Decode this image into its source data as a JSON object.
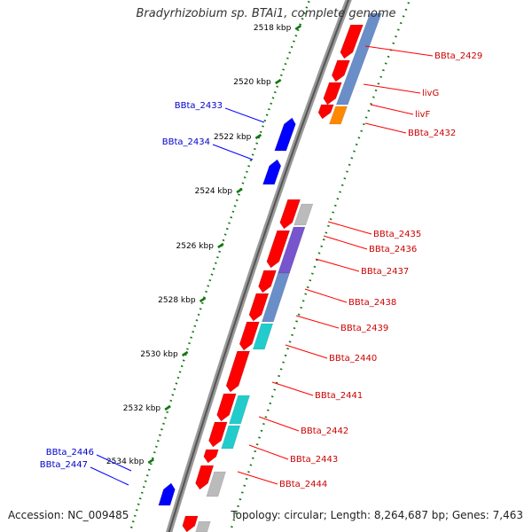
{
  "title": "Bradyrhizobium sp. BTAi1, complete genome",
  "accession": "Accession: NC_009485",
  "topology": "Topology: circular; Length: 8,264,687 bp; Genes: 7,463",
  "colors": {
    "backbone_outer": "#999999",
    "backbone_inner": "#555555",
    "forward_gene": "#ff0000",
    "reverse_gene": "#0000ff",
    "forward_label": "#cc0000",
    "reverse_label": "#0000cc",
    "tick_label": "#000000",
    "ruler_dots": "#117711",
    "cog_blue": "#6a8ec8",
    "cog_cyan": "#22cccc",
    "cog_orange": "#ff8800",
    "cog_purple": "#7755cc",
    "cog_gray": "#bbbbbb"
  },
  "scale_ticks": [
    "2518 kbp",
    "2520 kbp",
    "2522 kbp",
    "2524 kbp",
    "2526 kbp",
    "2528 kbp",
    "2530 kbp",
    "2532 kbp",
    "2534 kbp"
  ],
  "forward_labels": [
    "BBta_2429",
    "livG",
    "livF",
    "BBta_2432",
    "BBta_2435",
    "BBta_2436",
    "BBta_2437",
    "BBta_2438",
    "BBta_2439",
    "BBta_2440",
    "BBta_2441",
    "BBta_2442",
    "BBta_2443",
    "BBta_2444"
  ],
  "reverse_labels": [
    "BBta_2433",
    "BBta_2434",
    "BBta_2446",
    "BBta_2447"
  ]
}
